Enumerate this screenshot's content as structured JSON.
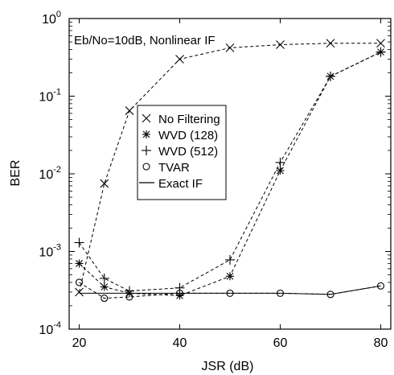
{
  "chart_data": {
    "type": "line",
    "annotation": "Eb/No=10dB, Nonlinear IF",
    "xlabel": "JSR (dB)",
    "ylabel": "BER",
    "xlim": [
      18,
      82
    ],
    "ylim": [
      0.0001,
      1
    ],
    "yscale": "log",
    "x_ticks": [
      20,
      40,
      60,
      80
    ],
    "y_ticks": [
      {
        "value": 0.0001,
        "base": "10",
        "exp": "-4"
      },
      {
        "value": 0.001,
        "base": "10",
        "exp": "-3"
      },
      {
        "value": 0.01,
        "base": "10",
        "exp": "-2"
      },
      {
        "value": 0.1,
        "base": "10",
        "exp": "-1"
      },
      {
        "value": 1,
        "base": "10",
        "exp": "0"
      }
    ],
    "grid": false,
    "legend_position": "center-left",
    "series": [
      {
        "name": "No Filtering",
        "marker": "x",
        "line": "dashed",
        "x": [
          20,
          25,
          30,
          40,
          50,
          60,
          70,
          80
        ],
        "y": [
          0.0003,
          0.0075,
          0.065,
          0.3,
          0.42,
          0.46,
          0.48,
          0.48
        ]
      },
      {
        "name": "WVD (128)",
        "marker": "asterisk",
        "line": "dashed",
        "x": [
          20,
          25,
          30,
          40,
          50,
          60,
          70,
          80
        ],
        "y": [
          0.0007,
          0.00035,
          0.00029,
          0.00027,
          0.00048,
          0.011,
          0.18,
          0.37
        ]
      },
      {
        "name": "WVD (512)",
        "marker": "plus",
        "line": "dashed",
        "x": [
          20,
          25,
          30,
          40,
          50,
          60,
          70,
          80
        ],
        "y": [
          0.0013,
          0.00045,
          0.00031,
          0.00034,
          0.00078,
          0.014,
          0.18,
          0.37
        ]
      },
      {
        "name": "TVAR",
        "marker": "circle",
        "line": "dashed",
        "x": [
          20,
          25,
          30,
          40,
          50,
          60,
          70,
          80
        ],
        "y": [
          0.0004,
          0.00025,
          0.00026,
          0.00029,
          0.00029,
          0.00029,
          0.00028,
          0.00036
        ]
      },
      {
        "name": "Exact IF",
        "marker": "none",
        "line": "solid",
        "x": [
          20,
          30,
          40,
          50,
          60,
          70,
          80
        ],
        "y": [
          0.00029,
          0.00029,
          0.00029,
          0.00029,
          0.00029,
          0.00028,
          0.00036
        ]
      }
    ]
  }
}
